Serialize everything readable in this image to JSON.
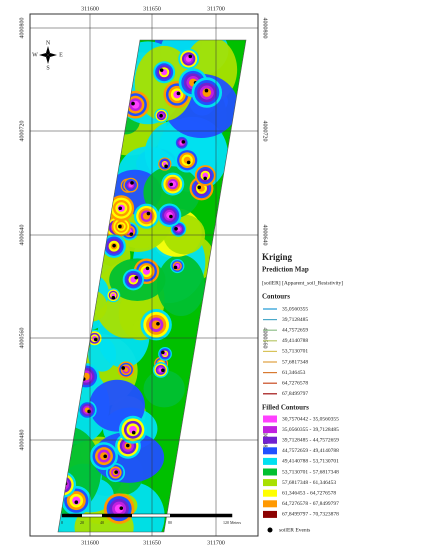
{
  "map": {
    "compass": {
      "n": "N",
      "s": "S",
      "e": "E",
      "w": "W"
    },
    "x_labels": [
      "311600",
      "311650",
      "311700"
    ],
    "y_labels": [
      "4000800",
      "4000720",
      "4000640",
      "4000560",
      "4000480"
    ],
    "scale_labels": [
      "0",
      "20",
      "40",
      "80",
      "120 Meters"
    ]
  },
  "legend": {
    "title": "Kriging",
    "subtitle": "Prediction Map",
    "layer": "[soilER] [Apparent_soil_Resistivity]",
    "contours_heading": "Contours",
    "contours": [
      {
        "label": "35,0560355",
        "color": "#1f9ad6"
      },
      {
        "label": "39,7128485",
        "color": "#4aa8c8"
      },
      {
        "label": "44,7572659",
        "color": "#8fbf8a"
      },
      {
        "label": "49,4140788",
        "color": "#b9c86a"
      },
      {
        "label": "53,7130701",
        "color": "#d8c35a"
      },
      {
        "label": "57,6817348",
        "color": "#e0a040"
      },
      {
        "label": "61,346453",
        "color": "#d87a30"
      },
      {
        "label": "64,7276578",
        "color": "#c84a20"
      },
      {
        "label": "67,8499797",
        "color": "#a01010"
      }
    ],
    "filled_heading": "Filled Contours",
    "filled": [
      {
        "label": "30,7570442 - 35,0560355",
        "color": "#ff40ff"
      },
      {
        "label": "35,0560355 - 39,7128485",
        "color": "#c020e0"
      },
      {
        "label": "39,7128485 - 44,7572659",
        "color": "#7020d0"
      },
      {
        "label": "44,7572659 - 49,4140788",
        "color": "#2050ff"
      },
      {
        "label": "49,4140788 - 53,7130701",
        "color": "#00e0f0"
      },
      {
        "label": "53,7130701 - 57,6817348",
        "color": "#00c030"
      },
      {
        "label": "57,6817348 - 61,346453",
        "color": "#a8e000"
      },
      {
        "label": "61,346453 - 64,7276578",
        "color": "#ffff00"
      },
      {
        "label": "64,7276578 - 67,8499797",
        "color": "#ff9900"
      },
      {
        "label": "67,8499797 - 70,7323878",
        "color": "#8b0000"
      }
    ],
    "events_label": "soilER Events"
  }
}
